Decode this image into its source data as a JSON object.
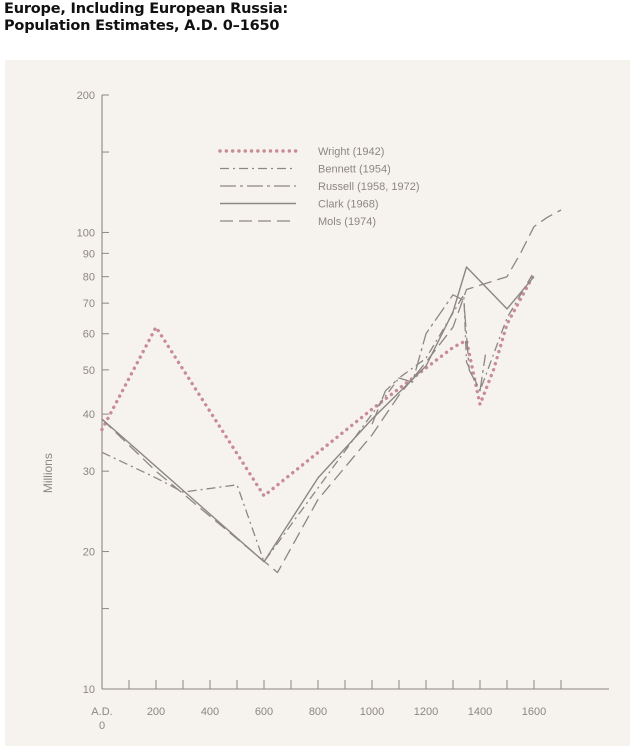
{
  "title": {
    "line1": "Europe, Including European Russia:",
    "line2": "Population Estimates, A.D. 0–1650"
  },
  "chart_data": {
    "type": "line",
    "title": "Europe, Including European Russia: Population Estimates, A.D. 0–1650",
    "ylabel": "Millions",
    "xlabel": "",
    "y_scale": "log",
    "ylim": [
      10,
      200
    ],
    "xlim": [
      0,
      1750
    ],
    "x_tick_labels": [
      {
        "x": 0,
        "label": "A.D.",
        "sub": "0"
      },
      {
        "x": 200,
        "label": "200"
      },
      {
        "x": 400,
        "label": "400"
      },
      {
        "x": 600,
        "label": "600"
      },
      {
        "x": 800,
        "label": "800"
      },
      {
        "x": 1000,
        "label": "1000"
      },
      {
        "x": 1200,
        "label": "1200"
      },
      {
        "x": 1400,
        "label": "1400"
      },
      {
        "x": 1600,
        "label": "1600"
      }
    ],
    "x_minor_ticks": [
      100,
      300,
      500,
      700,
      900,
      1100,
      1300,
      1500,
      1700
    ],
    "y_tick_labels": [
      {
        "y": 200,
        "label": "200"
      },
      {
        "y": 100,
        "label": "100"
      },
      {
        "y": 90,
        "label": "90"
      },
      {
        "y": 80,
        "label": "80"
      },
      {
        "y": 70,
        "label": "70"
      },
      {
        "y": 60,
        "label": "60"
      },
      {
        "y": 50,
        "label": "50"
      },
      {
        "y": 40,
        "label": "40"
      },
      {
        "y": 30,
        "label": "30"
      },
      {
        "y": 20,
        "label": "20"
      },
      {
        "y": 10,
        "label": "10"
      }
    ],
    "y_minor_ticks": [
      150,
      15
    ],
    "grid": false,
    "legend_position": "top-center",
    "color": "#8c8684",
    "wright_color": "#c98c94",
    "series": [
      {
        "name": "Wright (1942)",
        "style": "dotted",
        "x": [
          0,
          200,
          600,
          1000,
          1300,
          1350,
          1400,
          1450,
          1500,
          1600
        ],
        "y": [
          37,
          62,
          26.5,
          41,
          56,
          58,
          42,
          50,
          63,
          81
        ]
      },
      {
        "name": "Bennett (1954)",
        "style": "dashdot",
        "x": [
          0,
          200,
          300,
          500,
          600,
          1000,
          1100,
          1200,
          1340,
          1350,
          1400,
          1500,
          1600
        ],
        "y": [
          33,
          29,
          27,
          28,
          19,
          40,
          48,
          53,
          73,
          52,
          45,
          65,
          82
        ]
      },
      {
        "name": "Russell (1958, 1972)",
        "style": "dashdotlong",
        "x": [
          1000,
          1050,
          1100,
          1150,
          1200,
          1300,
          1340,
          1360,
          1400,
          1420
        ],
        "y": [
          38,
          45,
          48,
          47,
          60,
          73,
          71,
          50,
          45,
          54
        ]
      },
      {
        "name": "Clark (1968)",
        "style": "solid",
        "x": [
          0,
          600,
          800,
          1000,
          1200,
          1300,
          1350,
          1500,
          1600
        ],
        "y": [
          39,
          19,
          29,
          39,
          51,
          67,
          84,
          68,
          80
        ]
      },
      {
        "name": "Mols (1974)",
        "style": "dashed",
        "x": [
          0,
          200,
          650,
          800,
          1000,
          1100,
          1200,
          1300,
          1350,
          1500,
          1550,
          1600,
          1650,
          1700
        ],
        "y": [
          39,
          30,
          18,
          26,
          36,
          44,
          52,
          62,
          75,
          80,
          90,
          103,
          108,
          112
        ]
      }
    ]
  }
}
